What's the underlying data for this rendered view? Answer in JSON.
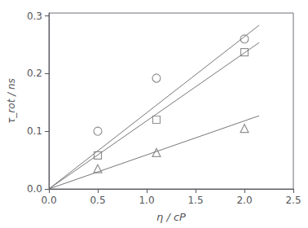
{
  "chart_data": {
    "type": "scatter",
    "xlabel": "η / cP",
    "ylabel": "τ_rot / ns",
    "xlim": [
      0.0,
      2.5
    ],
    "ylim": [
      0.0,
      0.305
    ],
    "xticks": [
      {
        "value": 0.0,
        "label": "0.0"
      },
      0.5,
      {
        "value": 1.0,
        "label": "1.0"
      },
      1.5,
      {
        "value": 2.0,
        "label": "2.0"
      },
      2.5
    ],
    "yticks": [
      {
        "value": 0.0,
        "label": "0.0"
      },
      0.1,
      0.2,
      0.3
    ],
    "grid": false,
    "series": [
      {
        "type": "line",
        "color": "#777777",
        "x": [
          0.0,
          2.15
        ],
        "values": [
          0.0,
          0.2838
        ]
      },
      {
        "type": "line",
        "color": "#777777",
        "x": [
          0.0,
          2.15
        ],
        "values": [
          0.0,
          0.2537
        ]
      },
      {
        "type": "line",
        "color": "#777777",
        "x": [
          0.0,
          2.15
        ],
        "values": [
          0.0,
          0.12685
        ]
      },
      {
        "type": "scatter",
        "marker": "circle",
        "color": "#777777",
        "x": [
          0.5,
          1.1,
          2.0
        ],
        "values": [
          0.1,
          0.192,
          0.26
        ]
      },
      {
        "type": "scatter",
        "marker": "square",
        "color": "#777777",
        "x": [
          0.5,
          1.1,
          2.0
        ],
        "values": [
          0.058,
          0.12,
          0.237
        ]
      },
      {
        "type": "scatter",
        "marker": "triangle",
        "color": "#777777",
        "x": [
          0.5,
          1.1,
          2.0
        ],
        "values": [
          0.035,
          0.063,
          0.105
        ]
      }
    ]
  }
}
